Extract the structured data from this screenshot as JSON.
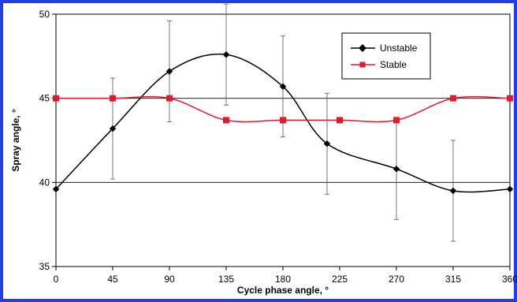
{
  "colors": {
    "frame_border": "#1f3fe0",
    "unstable": "#000000",
    "stable": "#e8182b",
    "grid": "#000000"
  },
  "chart_data": {
    "type": "line",
    "title": "",
    "xlabel": "Cycle phase angle, °",
    "ylabel": "Spray angle, °",
    "xlim": [
      0,
      360
    ],
    "ylim": [
      35,
      50
    ],
    "xticks": [
      0,
      45,
      90,
      135,
      180,
      225,
      270,
      315,
      360
    ],
    "yticks": [
      35,
      40,
      45,
      50
    ],
    "grid": "horizontal gridlines at 40 and 45",
    "legend_position": "top-right",
    "series": [
      {
        "name": "Unstable",
        "color": "#000000",
        "marker": "diamond",
        "smooth": true,
        "x": [
          0,
          45,
          90,
          135,
          180,
          215,
          270,
          315,
          360
        ],
        "y": [
          39.6,
          43.2,
          46.6,
          47.6,
          45.7,
          42.3,
          40.8,
          39.5,
          39.6
        ],
        "error": [
          0,
          3.0,
          3.0,
          3.0,
          3.0,
          3.0,
          3.0,
          3.0,
          0
        ]
      },
      {
        "name": "Stable",
        "color": "#e8182b",
        "marker": "square",
        "smooth": true,
        "x": [
          0,
          45,
          90,
          135,
          180,
          225,
          270,
          315,
          360
        ],
        "y": [
          45.0,
          45.0,
          45.0,
          43.7,
          43.7,
          43.7,
          43.7,
          45.0,
          45.0
        ],
        "error": [
          0,
          0,
          0,
          0,
          0,
          0,
          0,
          0,
          0
        ]
      }
    ]
  }
}
